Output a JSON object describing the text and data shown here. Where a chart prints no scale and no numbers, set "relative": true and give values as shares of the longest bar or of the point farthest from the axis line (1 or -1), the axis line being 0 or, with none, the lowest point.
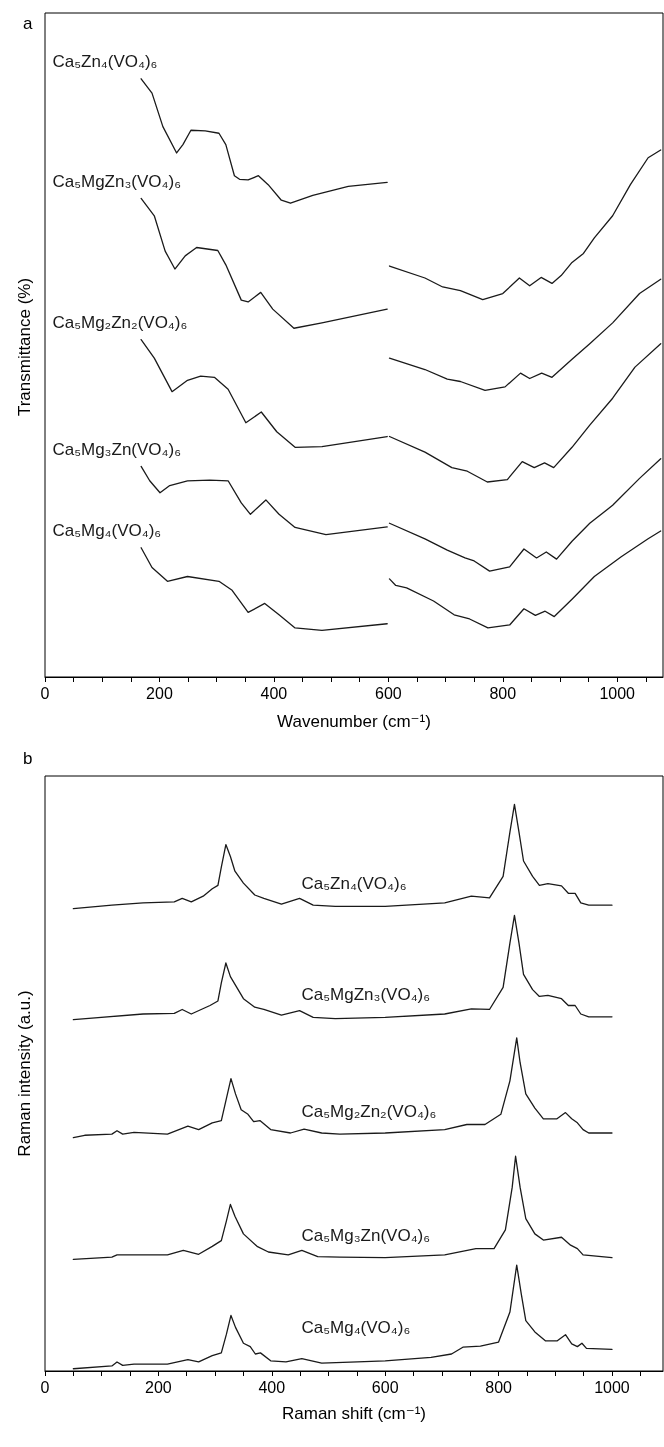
{
  "chart_data": [
    {
      "type": "line",
      "title": "a",
      "xlabel": "Wavenumber (cm⁻¹)",
      "ylabel": "Transmittance (%)",
      "relative": true,
      "xlim": [
        0,
        1080
      ],
      "xticks": [
        0,
        {
          "value": 50,
          "label": null
        },
        {
          "value": 100,
          "label": null
        },
        {
          "value": 150,
          "label": null
        },
        200,
        {
          "value": 250,
          "label": null
        },
        {
          "value": 300,
          "label": null
        },
        {
          "value": 350,
          "label": null
        },
        400,
        {
          "value": 450,
          "label": null
        },
        {
          "value": 500,
          "label": null
        },
        {
          "value": 550,
          "label": null
        },
        600,
        {
          "value": 650,
          "label": null
        },
        {
          "value": 700,
          "label": null
        },
        {
          "value": 750,
          "label": null
        },
        800,
        {
          "value": 850,
          "label": null
        },
        {
          "value": 900,
          "label": null
        },
        {
          "value": 950,
          "label": null
        },
        1000,
        {
          "value": 1050,
          "label": null
        }
      ],
      "series": [
        {
          "name": "Ca₅Zn₄(VO₄)₆",
          "color": "#1a1a1a",
          "x": [
            168,
            187,
            206,
            230,
            241,
            255,
            280,
            304,
            316,
            331,
            340,
            355,
            373,
            390,
            413,
            429,
            468,
            530,
            598,
            600,
            602,
            664,
            695,
            726,
            765,
            800,
            829,
            847,
            867,
            886,
            902,
            921,
            941,
            960,
            992,
            1023,
            1054,
            1076
          ],
          "values": [
            1.0,
            0.976,
            0.92,
            0.876,
            0.89,
            0.914,
            0.913,
            0.909,
            0.89,
            0.838,
            0.832,
            0.831,
            0.838,
            0.823,
            0.797,
            0.792,
            0.805,
            0.82,
            0.827,
            null,
            0.687,
            0.667,
            0.652,
            0.646,
            0.631,
            0.641,
            0.667,
            0.654,
            0.668,
            0.658,
            0.671,
            0.693,
            0.708,
            0.734,
            0.771,
            0.823,
            0.868,
            0.881
          ]
        },
        {
          "name": "Ca₅MgZn₃(VO₄)₆",
          "color": "#1a1a1a",
          "x": [
            168,
            191,
            210,
            227,
            245,
            265,
            302,
            316,
            343,
            355,
            377,
            398,
            435,
            484,
            598,
            600,
            602,
            664,
            703,
            726,
            769,
            804,
            831,
            847,
            868,
            886,
            921,
            952,
            992,
            1039,
            1076
          ],
          "values": [
            0.8,
            0.771,
            0.712,
            0.682,
            0.704,
            0.718,
            0.713,
            0.689,
            0.63,
            0.627,
            0.643,
            0.615,
            0.583,
            0.592,
            0.615,
            null,
            0.533,
            0.514,
            0.498,
            0.494,
            0.479,
            0.485,
            0.508,
            0.499,
            0.508,
            0.501,
            0.531,
            0.557,
            0.592,
            0.641,
            0.665
          ]
        },
        {
          "name": "Ca₅Mg₂Zn₂(VO₄)₆",
          "color": "#1a1a1a",
          "x": [
            168,
            191,
            222,
            249,
            272,
            296,
            320,
            351,
            378,
            405,
            437,
            484,
            598,
            600,
            602,
            664,
            711,
            738,
            773,
            808,
            834,
            855,
            873,
            889,
            921,
            952,
            992,
            1031,
            1076
          ],
          "values": [
            0.564,
            0.533,
            0.477,
            0.496,
            0.503,
            0.501,
            0.481,
            0.425,
            0.443,
            0.41,
            0.384,
            0.385,
            0.402,
            null,
            0.402,
            0.376,
            0.35,
            0.344,
            0.326,
            0.33,
            0.36,
            0.35,
            0.358,
            0.35,
            0.384,
            0.421,
            0.466,
            0.518,
            0.557
          ]
        },
        {
          "name": "Ca₅Mg₃Zn(VO₄)₆",
          "color": "#1a1a1a",
          "x": [
            168,
            183,
            201,
            218,
            249,
            288,
            320,
            343,
            359,
            386,
            409,
            437,
            491,
            598,
            600,
            602,
            664,
            703,
            734,
            750,
            777,
            812,
            837,
            859,
            876,
            894,
            921,
            952,
            992,
            1039,
            1076
          ],
          "values": [
            0.352,
            0.328,
            0.308,
            0.32,
            0.328,
            0.329,
            0.328,
            0.291,
            0.272,
            0.296,
            0.272,
            0.25,
            0.238,
            0.251,
            null,
            0.257,
            0.231,
            0.212,
            0.199,
            0.194,
            0.177,
            0.184,
            0.214,
            0.199,
            0.209,
            0.197,
            0.227,
            0.257,
            0.287,
            0.332,
            0.365
          ]
        },
        {
          "name": "Ca₅Mg₄(VO₄)₆",
          "color": "#1a1a1a",
          "x": [
            168,
            187,
            214,
            249,
            304,
            327,
            355,
            384,
            409,
            437,
            484,
            598,
            600,
            602,
            613,
            632,
            679,
            715,
            742,
            774,
            812,
            837,
            857,
            874,
            890,
            921,
            960,
            1007,
            1054,
            1076
          ],
          "values": [
            0.216,
            0.183,
            0.16,
            0.168,
            0.16,
            0.145,
            0.108,
            0.123,
            0.104,
            0.082,
            0.078,
            0.089,
            null,
            0.164,
            0.153,
            0.149,
            0.127,
            0.104,
            0.097,
            0.082,
            0.087,
            0.114,
            0.103,
            0.11,
            0.101,
            0.13,
            0.168,
            0.201,
            0.231,
            0.244
          ]
        }
      ]
    },
    {
      "type": "line",
      "title": "b",
      "xlabel": "Raman shift (cm⁻¹)",
      "ylabel": "Raman intensity (a.u.)",
      "relative": true,
      "xlim": [
        0,
        1090
      ],
      "xticks": [
        0,
        {
          "value": 50,
          "label": null
        },
        {
          "value": 100,
          "label": null
        },
        {
          "value": 150,
          "label": null
        },
        200,
        {
          "value": 250,
          "label": null
        },
        {
          "value": 300,
          "label": null
        },
        {
          "value": 350,
          "label": null
        },
        400,
        {
          "value": 450,
          "label": null
        },
        {
          "value": 500,
          "label": null
        },
        {
          "value": 550,
          "label": null
        },
        600,
        {
          "value": 650,
          "label": null
        },
        {
          "value": 700,
          "label": null
        },
        {
          "value": 750,
          "label": null
        },
        800,
        {
          "value": 850,
          "label": null
        },
        {
          "value": 900,
          "label": null
        },
        {
          "value": 950,
          "label": null
        },
        1000,
        {
          "value": 1050,
          "label": null
        }
      ],
      "series": [
        {
          "name": "Ca₅Zn₄(VO₄)₆",
          "color": "#1a1a1a",
          "x": [
            50,
            118,
            173,
            228,
            242,
            258,
            279,
            295,
            305,
            311,
            319,
            327,
            335,
            350,
            370,
            386,
            417,
            449,
            473,
            512,
            600,
            705,
            752,
            784,
            808,
            820,
            828,
            836,
            844,
            860,
            872,
            887,
            911,
            923,
            935,
            945,
            959,
            1000
          ],
          "values": [
            0.816,
            0.822,
            0.826,
            0.828,
            0.834,
            0.828,
            0.838,
            0.851,
            0.857,
            0.889,
            0.929,
            0.908,
            0.882,
            0.861,
            0.84,
            0.834,
            0.824,
            0.834,
            0.822,
            0.82,
            0.82,
            0.826,
            0.838,
            0.835,
            0.873,
            0.951,
            1.0,
            0.951,
            0.9,
            0.873,
            0.857,
            0.86,
            0.856,
            0.843,
            0.843,
            0.826,
            0.822,
            0.822
          ]
        },
        {
          "name": "Ca₅MgZn₃(VO₄)₆",
          "color": "#1a1a1a",
          "x": [
            50,
            173,
            228,
            242,
            258,
            291,
            305,
            311,
            319,
            327,
            350,
            370,
            386,
            417,
            449,
            473,
            512,
            600,
            705,
            752,
            784,
            808,
            820,
            828,
            836,
            844,
            860,
            872,
            887,
            911,
            923,
            935,
            945,
            959,
            1000
          ],
          "values": [
            0.62,
            0.63,
            0.631,
            0.638,
            0.63,
            0.645,
            0.653,
            0.685,
            0.72,
            0.696,
            0.657,
            0.642,
            0.638,
            0.628,
            0.636,
            0.624,
            0.622,
            0.624,
            0.63,
            0.639,
            0.638,
            0.677,
            0.755,
            0.804,
            0.755,
            0.7,
            0.673,
            0.661,
            0.663,
            0.657,
            0.645,
            0.645,
            0.63,
            0.625,
            0.625
          ]
        },
        {
          "name": "Ca₅Mg₂Zn₂(VO₄)₆",
          "color": "#1a1a1a",
          "x": [
            50,
            70,
            118,
            127,
            137,
            157,
            216,
            252,
            271,
            295,
            311,
            320,
            328,
            336,
            346,
            358,
            368,
            379,
            398,
            433,
            457,
            488,
            520,
            600,
            705,
            744,
            776,
            804,
            820,
            832,
            838,
            848,
            864,
            879,
            903,
            918,
            929,
            939,
            949,
            959,
            1000
          ],
          "values": [
            0.412,
            0.416,
            0.418,
            0.424,
            0.418,
            0.421,
            0.418,
            0.432,
            0.426,
            0.438,
            0.442,
            0.481,
            0.516,
            0.489,
            0.461,
            0.453,
            0.44,
            0.442,
            0.426,
            0.42,
            0.427,
            0.42,
            0.418,
            0.42,
            0.426,
            0.435,
            0.435,
            0.453,
            0.512,
            0.588,
            0.544,
            0.489,
            0.464,
            0.445,
            0.445,
            0.456,
            0.445,
            0.438,
            0.426,
            0.42,
            0.42
          ]
        },
        {
          "name": "Ca₅Mg₃Zn(VO₄)₆",
          "color": "#1a1a1a",
          "x": [
            50,
            118,
            127,
            216,
            244,
            271,
            295,
            311,
            320,
            327,
            335,
            350,
            374,
            394,
            429,
            453,
            481,
            520,
            600,
            705,
            760,
            792,
            812,
            824,
            830,
            838,
            848,
            864,
            879,
            911,
            927,
            939,
            949,
            1000
          ],
          "values": [
            0.197,
            0.201,
            0.205,
            0.205,
            0.213,
            0.206,
            0.22,
            0.23,
            0.265,
            0.294,
            0.273,
            0.242,
            0.22,
            0.21,
            0.205,
            0.213,
            0.202,
            0.201,
            0.2,
            0.205,
            0.216,
            0.216,
            0.249,
            0.324,
            0.379,
            0.324,
            0.269,
            0.242,
            0.231,
            0.236,
            0.222,
            0.216,
            0.205,
            0.2
          ]
        },
        {
          "name": "Ca₅Mg₄(VO₄)₆",
          "color": "#1a1a1a",
          "x": [
            50,
            118,
            127,
            137,
            157,
            216,
            252,
            271,
            295,
            311,
            320,
            328,
            336,
            350,
            362,
            371,
            380,
            398,
            425,
            453,
            488,
            551,
            600,
            681,
            717,
            737,
            768,
            800,
            820,
            832,
            840,
            848,
            864,
            883,
            903,
            918,
            929,
            939,
            947,
            955,
            1000
          ],
          "values": [
            0.004,
            0.009,
            0.016,
            0.01,
            0.012,
            0.012,
            0.02,
            0.016,
            0.027,
            0.032,
            0.065,
            0.098,
            0.077,
            0.049,
            0.043,
            0.03,
            0.032,
            0.018,
            0.016,
            0.022,
            0.014,
            0.016,
            0.018,
            0.024,
            0.03,
            0.042,
            0.044,
            0.051,
            0.104,
            0.187,
            0.136,
            0.089,
            0.069,
            0.053,
            0.053,
            0.064,
            0.048,
            0.043,
            0.049,
            0.04,
            0.038
          ]
        }
      ]
    }
  ]
}
